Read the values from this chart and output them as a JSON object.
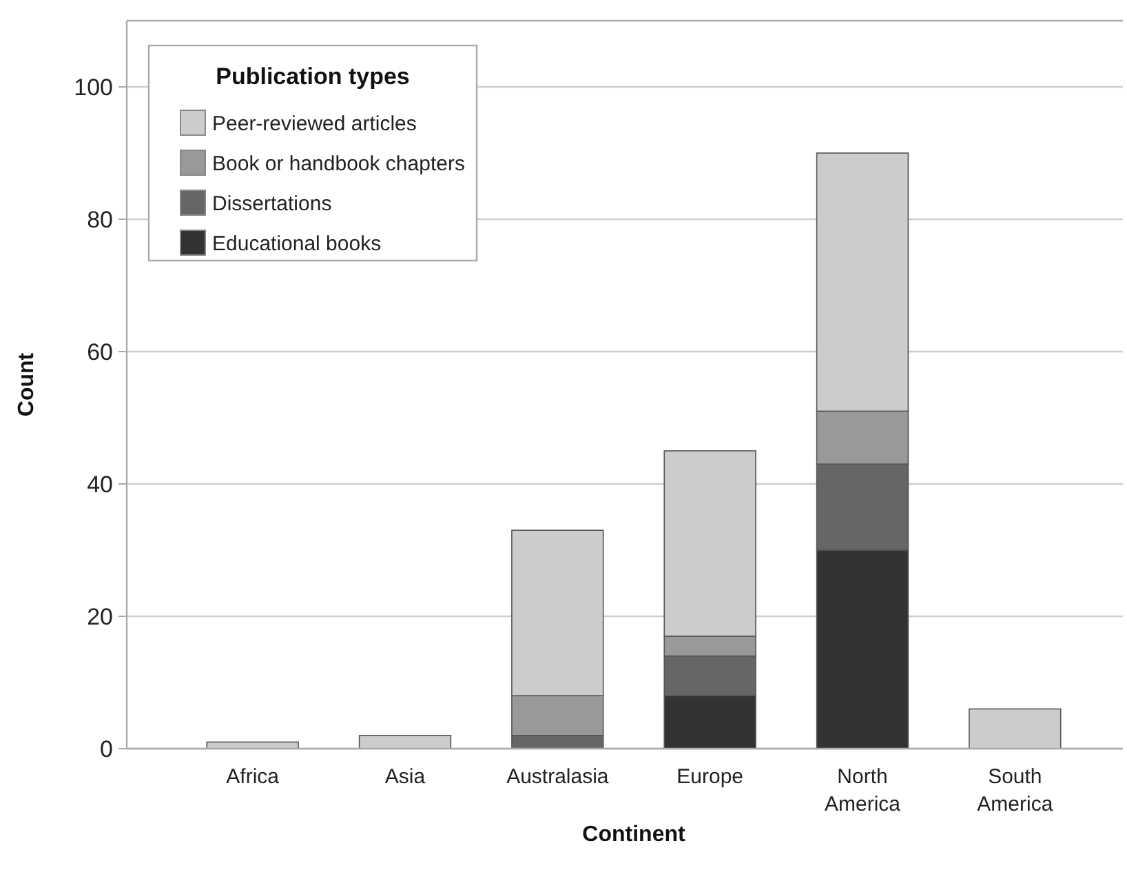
{
  "chart_data": {
    "type": "bar",
    "stacked": true,
    "xlabel": "Continent",
    "ylabel": "Count",
    "legend_title": "Publication types",
    "legend": "top left",
    "grid": "y",
    "categories": [
      "Africa",
      "Asia",
      "Australasia",
      "Europe",
      "North America",
      "South America"
    ],
    "ylim": [
      0,
      110
    ],
    "yticks": [
      0,
      20,
      40,
      60,
      80,
      100
    ],
    "series": [
      {
        "name": "Educational books",
        "color": "#333333",
        "values": [
          0,
          0,
          0,
          8,
          30,
          0
        ]
      },
      {
        "name": "Dissertations",
        "color": "#666666",
        "values": [
          0,
          0,
          2,
          6,
          13,
          0
        ]
      },
      {
        "name": "Book or handbook chapters",
        "color": "#999999",
        "values": [
          0,
          0,
          6,
          3,
          8,
          0
        ]
      },
      {
        "name": "Peer-reviewed articles",
        "color": "#cccccc",
        "values": [
          1,
          2,
          25,
          28,
          39,
          6
        ]
      }
    ]
  }
}
